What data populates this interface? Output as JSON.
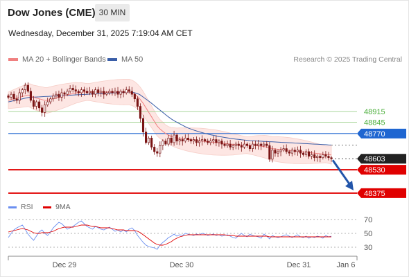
{
  "header": {
    "title": "Dow Jones (CME)",
    "timeframe": "30 MIN",
    "datetime": "Wednesday, December 31, 2025 7:19:04 AM CET"
  },
  "legend": {
    "ma20_label": "MA 20 + Bollinger Bands",
    "ma50_label": "MA 50",
    "credit": "Research © 2025 Trading Central",
    "rsi_label": "RSI",
    "rsi_ma_label": "9MA"
  },
  "colors": {
    "ma20": "#f08080",
    "bands_fill": "#fde4e0",
    "ma50": "#3a5ea8",
    "candle": "#7a1515",
    "green_level": "#4caf3c",
    "pivot": "#1f66d1",
    "support": "#e00000",
    "current": "#222222",
    "forecast_arrow": "#2255aa",
    "rsi": "#6b8ff0",
    "rsi_ma": "#e00000"
  },
  "chart_data": [
    {
      "type": "line",
      "title": "",
      "price_range": [
        48370,
        49150
      ],
      "x_ticks": [
        "Dec 29",
        "Dec 30",
        "Dec 31",
        "Jan 6"
      ],
      "levels": [
        {
          "label": "48915",
          "value": 48915,
          "kind": "resistance-green"
        },
        {
          "label": "48845",
          "value": 48845,
          "kind": "resistance-green"
        },
        {
          "label": "48770",
          "value": 48770,
          "kind": "pivot"
        },
        {
          "label": "48603",
          "value": 48603,
          "kind": "current"
        },
        {
          "label": "48530",
          "value": 48530,
          "kind": "support"
        },
        {
          "label": "48375",
          "value": 48375,
          "kind": "support"
        }
      ],
      "forecast": {
        "from": 48603,
        "to": 48375
      },
      "series": [
        {
          "name": "Price (close)",
          "values": [
            49010,
            49030,
            49000,
            48990,
            49040,
            49060,
            49090,
            49050,
            48990,
            48950,
            48980,
            48940,
            48910,
            48960,
            48980,
            49000,
            49020,
            49030,
            49010,
            49040,
            49030,
            49050,
            49070,
            49060,
            49050,
            49040,
            49060,
            49050,
            49040,
            49050,
            49030,
            49060,
            49040,
            49050,
            49030,
            49040,
            49050,
            49040,
            49050,
            49030,
            49050,
            49040,
            49060,
            49050,
            49030,
            49000,
            48950,
            48870,
            48780,
            48710,
            48740,
            48680,
            48650,
            48640,
            48690,
            48720,
            48700,
            48740,
            48710,
            48760,
            48720,
            48730,
            48720,
            48740,
            48730,
            48720,
            48730,
            48710,
            48720,
            48730,
            48720,
            48710,
            48720,
            48730,
            48710,
            48720,
            48700,
            48690,
            48700,
            48680,
            48690,
            48700,
            48690,
            48680,
            48700,
            48690,
            48670,
            48700,
            48690,
            48700,
            48690,
            48700,
            48690,
            48600,
            48660,
            48640,
            48650,
            48660,
            48670,
            48650,
            48640,
            48660,
            48650,
            48660,
            48640,
            48630,
            48650,
            48620,
            48630,
            48610,
            48620,
            48610,
            48630,
            48620,
            48610,
            48603
          ]
        },
        {
          "name": "MA 20",
          "values": [
            48990,
            48995,
            49000,
            49005,
            49010,
            49015,
            49020,
            49025,
            49020,
            49010,
            49005,
            49000,
            48995,
            48990,
            48990,
            48995,
            49000,
            49005,
            49010,
            49015,
            49020,
            49025,
            49030,
            49035,
            49040,
            49040,
            49045,
            49045,
            49045,
            49045,
            49045,
            49045,
            49045,
            49045,
            49045,
            49045,
            49045,
            49045,
            49045,
            49045,
            49045,
            49045,
            49045,
            49045,
            49040,
            49030,
            49015,
            48995,
            48970,
            48940,
            48910,
            48880,
            48850,
            48820,
            48800,
            48785,
            48770,
            48760,
            48750,
            48745,
            48740,
            48738,
            48735,
            48732,
            48730,
            48728,
            48726,
            48724,
            48722,
            48720,
            48718,
            48716,
            48714,
            48712,
            48710,
            48708,
            48706,
            48704,
            48702,
            48700,
            48698,
            48697,
            48696,
            48695,
            48694,
            48693,
            48692,
            48691,
            48690,
            48688,
            48686,
            48684,
            48680,
            48675,
            48670,
            48668,
            48666,
            48664,
            48662,
            48660,
            48658,
            48656,
            48654,
            48652,
            48650,
            48648,
            48646,
            48644,
            48642,
            48640,
            48638,
            48636,
            48634,
            48632,
            48630,
            48628
          ]
        },
        {
          "name": "MA 50",
          "values": [
            48980,
            48984,
            48988,
            48992,
            48996,
            49000,
            49004,
            49008,
            49010,
            49011,
            49012,
            49013,
            49014,
            49015,
            49016,
            49017,
            49018,
            49019,
            49020,
            49021,
            49022,
            49023,
            49024,
            49025,
            49026,
            49027,
            49028,
            49029,
            49030,
            49031,
            49032,
            49033,
            49034,
            49035,
            49036,
            49037,
            49038,
            49039,
            49040,
            49041,
            49042,
            49043,
            49044,
            49044,
            49043,
            49040,
            49035,
            49025,
            49012,
            48998,
            48985,
            48970,
            48955,
            48940,
            48925,
            48910,
            48895,
            48880,
            48867,
            48855,
            48845,
            48835,
            48825,
            48815,
            48807,
            48800,
            48793,
            48787,
            48781,
            48776,
            48771,
            48766,
            48762,
            48758,
            48754,
            48750,
            48747,
            48744,
            48741,
            48738,
            48735,
            48733,
            48731,
            48729,
            48727,
            48725,
            48723,
            48722,
            48721,
            48720,
            48719,
            48718,
            48717,
            48716,
            48715,
            48714,
            48713,
            48712,
            48711,
            48710,
            48709,
            48708,
            48707,
            48706,
            48705,
            48704,
            48703,
            48702,
            48701,
            48700,
            48699,
            48698,
            48697,
            48696,
            48695,
            48694
          ]
        }
      ]
    },
    {
      "type": "line",
      "title": "",
      "ylim": [
        25,
        75
      ],
      "y_ticks": [
        70,
        50,
        30
      ],
      "series": [
        {
          "name": "RSI",
          "values": [
            44,
            50,
            55,
            58,
            60,
            62,
            56,
            49,
            44,
            40,
            46,
            52,
            55,
            50,
            47,
            52,
            58,
            62,
            66,
            64,
            60,
            56,
            58,
            60,
            63,
            66,
            68,
            64,
            60,
            58,
            56,
            60,
            58,
            56,
            55,
            57,
            59,
            56,
            53,
            55,
            52,
            55,
            52,
            56,
            58,
            54,
            47,
            42,
            37,
            33,
            31,
            30,
            29,
            27,
            33,
            37,
            40,
            44,
            46,
            49,
            46,
            48,
            47,
            50,
            49,
            48,
            47,
            49,
            48,
            50,
            49,
            47,
            48,
            49,
            47,
            48,
            46,
            47,
            48,
            46,
            44,
            43,
            47,
            50,
            47,
            45,
            49,
            47,
            46,
            45,
            43,
            49,
            46,
            42,
            47,
            45,
            44,
            45,
            47,
            48,
            46,
            44,
            46,
            48,
            45,
            44,
            46,
            43,
            45,
            44,
            46,
            45,
            43,
            47,
            45,
            46
          ]
        },
        {
          "name": "9MA",
          "values": [
            52,
            53,
            54,
            55,
            56,
            57,
            56,
            55,
            53,
            51,
            50,
            50,
            51,
            51,
            51,
            52,
            53,
            55,
            57,
            58,
            59,
            59,
            59,
            59,
            60,
            61,
            62,
            62,
            62,
            61,
            60,
            60,
            59,
            58,
            58,
            58,
            58,
            57,
            56,
            55,
            55,
            55,
            54,
            54,
            54,
            54,
            53,
            51,
            48,
            45,
            42,
            39,
            36,
            34,
            33,
            33,
            34,
            36,
            38,
            41,
            43,
            45,
            46,
            47,
            48,
            48,
            48,
            48,
            48,
            48,
            48,
            48,
            48,
            48,
            48,
            48,
            48,
            48,
            47,
            47,
            47,
            46,
            46,
            46,
            46,
            46,
            46,
            46,
            46,
            46,
            46,
            46,
            46,
            45,
            45,
            45,
            45,
            45,
            45,
            45,
            45,
            45,
            45,
            45,
            45,
            45,
            45,
            45,
            45,
            45,
            45,
            45,
            45,
            45,
            45,
            45
          ]
        }
      ]
    }
  ]
}
